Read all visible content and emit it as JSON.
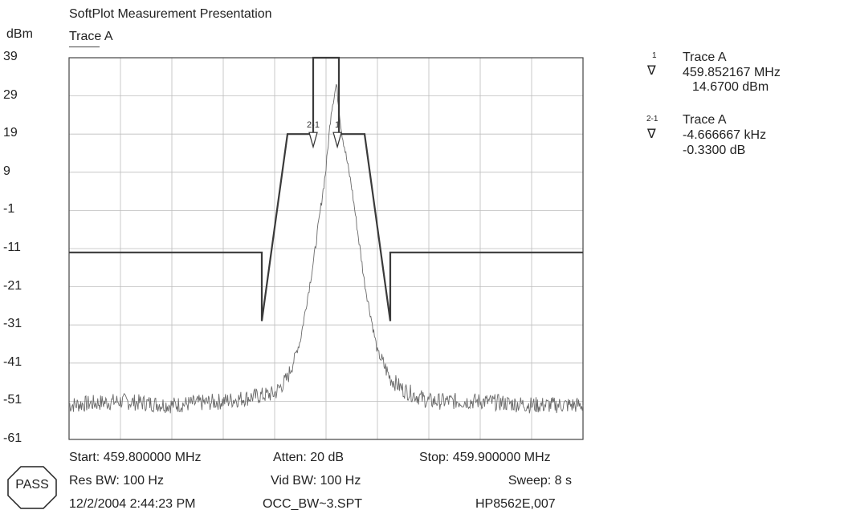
{
  "header": {
    "title": "SoftPlot Measurement Presentation",
    "unit": "dBm",
    "trace": "Trace A"
  },
  "chart_data": {
    "type": "line",
    "title": "SoftPlot Measurement Presentation",
    "ylabel": "dBm",
    "xlabel": "",
    "ylim": [
      -61,
      39
    ],
    "xlim": [
      459.8,
      459.9
    ],
    "yticks": [
      "39",
      "29",
      "19",
      "9",
      "-1",
      "-11",
      "-21",
      "-31",
      "-41",
      "-51",
      "-61"
    ],
    "grid": true,
    "series": [
      {
        "name": "Trace A",
        "note_shape": "noisy spectrum",
        "x": [
          459.8,
          459.81,
          459.82,
          459.83,
          459.835,
          459.84,
          459.8425,
          459.845,
          459.8475,
          459.85,
          459.851,
          459.852,
          459.853,
          459.855,
          459.8575,
          459.86,
          459.8625,
          459.865,
          459.87,
          459.88,
          459.89,
          459.9
        ],
        "y": [
          -52,
          -51,
          -52,
          -51,
          -50,
          -49,
          -45,
          -35,
          -15,
          10,
          25,
          32,
          20,
          5,
          -20,
          -38,
          -45,
          -48,
          -51,
          -51,
          -52,
          -52
        ]
      },
      {
        "name": "Mask",
        "x": [
          459.8,
          459.8375,
          459.8375,
          459.8425,
          459.8475,
          459.8475,
          459.8525,
          459.8525,
          459.8575,
          459.8625,
          459.8625,
          459.9
        ],
        "y": [
          -12,
          -12,
          -30,
          19,
          19,
          39,
          39,
          19,
          19,
          -30,
          -12,
          -12
        ]
      }
    ],
    "markers": [
      {
        "id": "1",
        "label": "1"
      },
      {
        "id": "2-1",
        "label": "2-1"
      }
    ]
  },
  "marker_readout": [
    {
      "num": "1",
      "trace": "Trace A",
      "line1": "459.852167 MHz",
      "line2": "14.6700 dBm"
    },
    {
      "num": "2-1",
      "trace": "Trace A",
      "line1": "-4.666667 kHz",
      "line2": "-0.3300 dB"
    }
  ],
  "footer": {
    "start": "Start: 459.800000 MHz",
    "atten": "Atten: 20 dB",
    "stop": "Stop: 459.900000 MHz",
    "res_bw": "Res BW: 100 Hz",
    "vid_bw": "Vid BW: 100 Hz",
    "sweep": "Sweep: 8 s",
    "datetime": "12/2/2004 2:44:23 PM",
    "file": "OCC_BW~3.SPT",
    "instrument": "HP8562E,007",
    "pass_label": "PASS"
  }
}
